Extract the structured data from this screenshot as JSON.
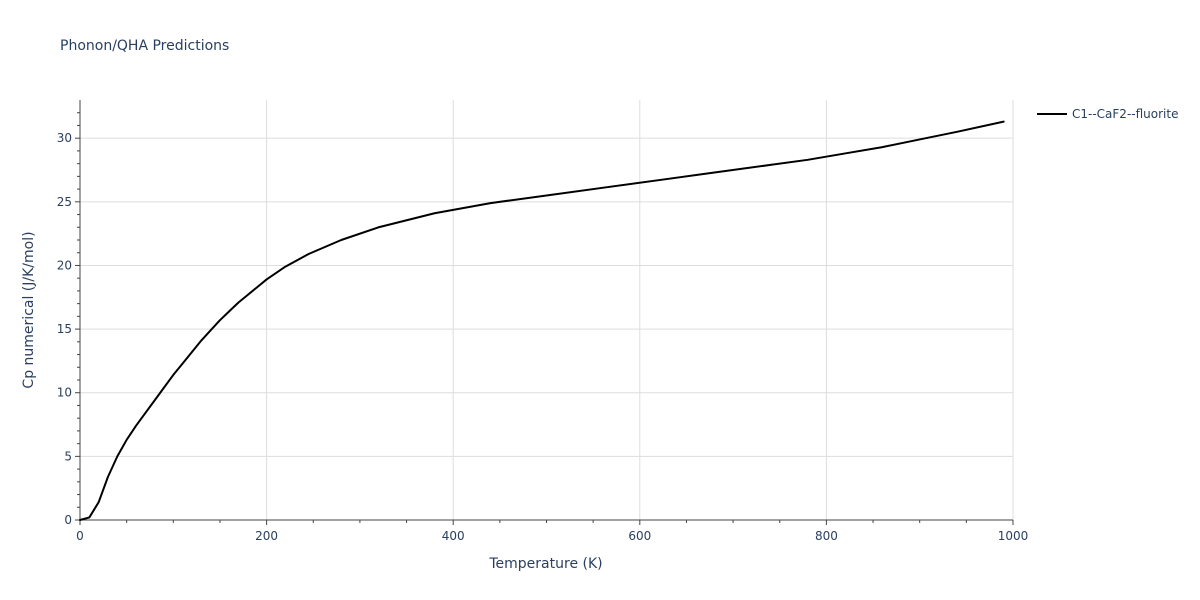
{
  "chart_data": {
    "type": "line",
    "title": "Phonon/QHA Predictions",
    "xlabel": "Temperature (K)",
    "ylabel": "Cp numerical (J/K/mol)",
    "xlim": [
      0,
      1000
    ],
    "ylim": [
      0,
      33
    ],
    "x_ticks": [
      0,
      200,
      400,
      600,
      800,
      1000
    ],
    "x_minor_ticks": [
      50,
      100,
      150,
      250,
      300,
      350,
      450,
      500,
      550,
      650,
      700,
      750,
      850,
      900,
      950
    ],
    "y_ticks": [
      0,
      5,
      10,
      15,
      20,
      25,
      30
    ],
    "y_minor_ticks": [
      1,
      2,
      3,
      4,
      6,
      7,
      8,
      9,
      11,
      12,
      13,
      14,
      16,
      17,
      18,
      19,
      21,
      22,
      23,
      24,
      26,
      27,
      28,
      29,
      31,
      32
    ],
    "grid": true,
    "legend_position": "top-right outside",
    "series": [
      {
        "name": "C1--CaF2--fluorite",
        "color": "#000000",
        "x": [
          0,
          10,
          20,
          30,
          40,
          50,
          60,
          70,
          80,
          90,
          100,
          110,
          120,
          130,
          140,
          150,
          160,
          170,
          180,
          190,
          200,
          220,
          245,
          280,
          320,
          380,
          440,
          500,
          560,
          620,
          680,
          740,
          780,
          820,
          860,
          900,
          940,
          990
        ],
        "y": [
          0,
          0.2,
          1.4,
          3.4,
          5.0,
          6.3,
          7.4,
          8.4,
          9.4,
          10.4,
          11.4,
          12.3,
          13.2,
          14.1,
          14.9,
          15.7,
          16.4,
          17.1,
          17.7,
          18.3,
          18.9,
          19.9,
          20.9,
          22.0,
          23.0,
          24.1,
          24.9,
          25.5,
          26.1,
          26.7,
          27.3,
          27.9,
          28.3,
          28.8,
          29.3,
          29.9,
          30.5,
          31.3
        ]
      }
    ]
  }
}
